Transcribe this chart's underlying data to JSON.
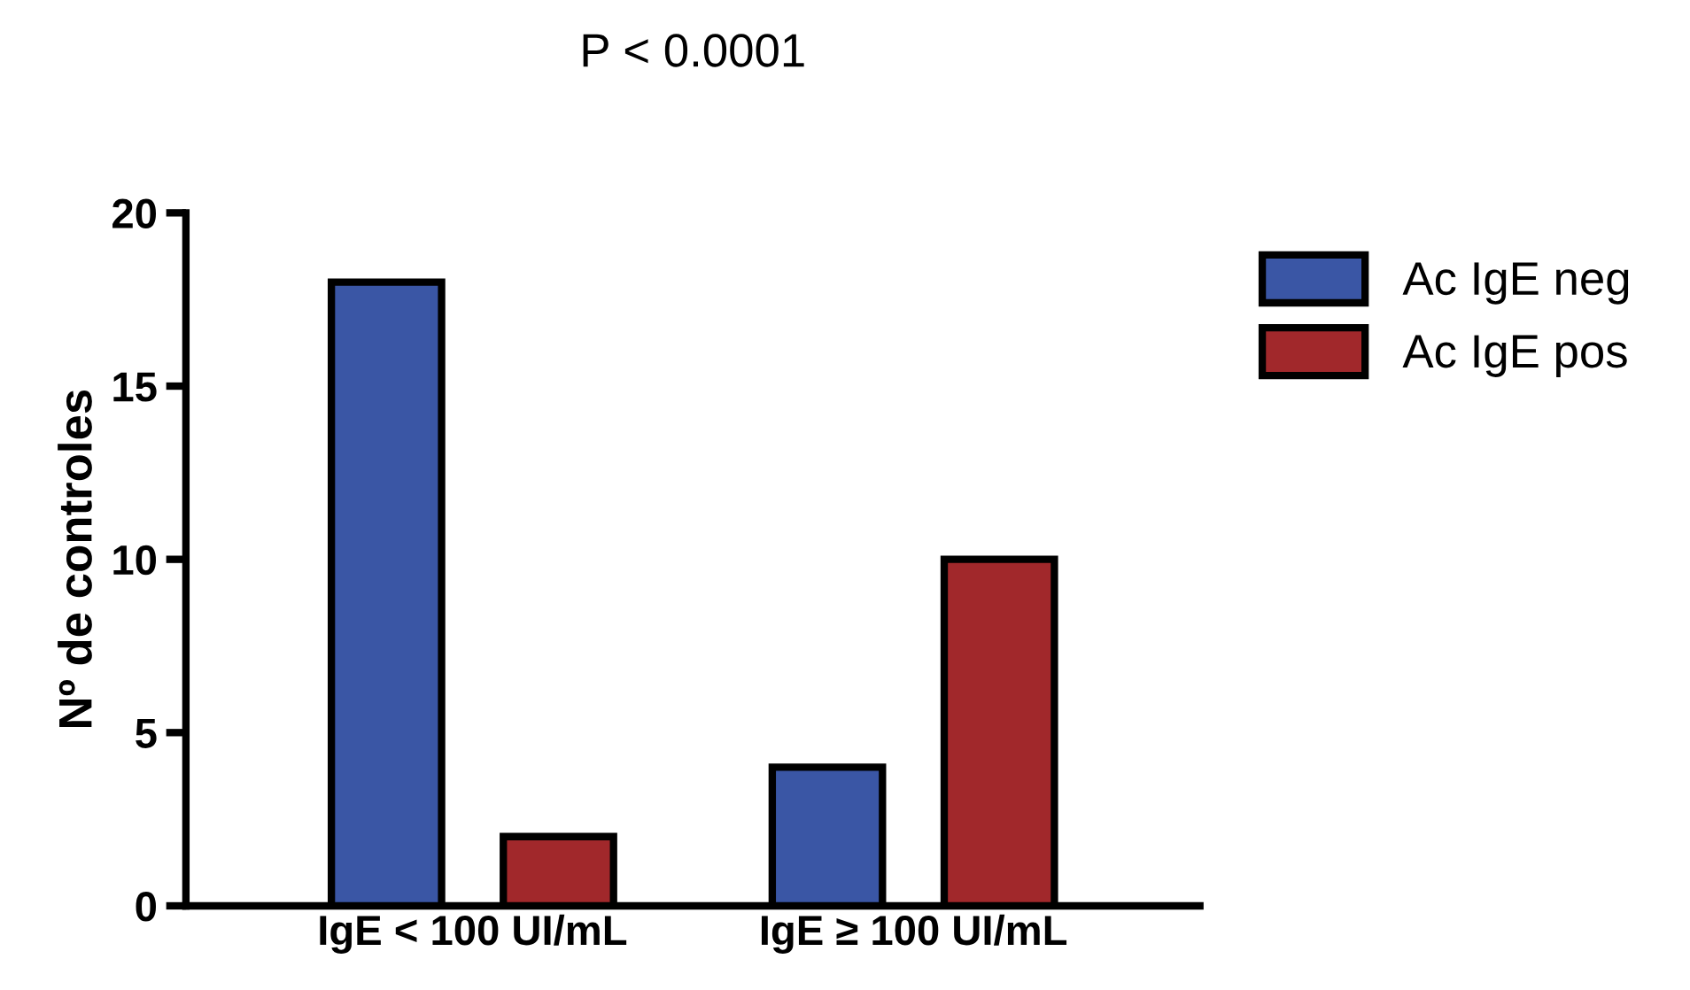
{
  "chart_data": {
    "type": "bar",
    "title": "P < 0.0001",
    "ylabel": "Nº de controles",
    "categories": [
      "IgE < 100 UI/mL",
      "IgE ≥ 100 UI/mL"
    ],
    "series": [
      {
        "name": "Ac IgE neg",
        "color": "#3a56a5",
        "values": [
          18,
          4
        ]
      },
      {
        "name": "Ac IgE pos",
        "color": "#a1282b",
        "values": [
          2,
          10
        ]
      }
    ],
    "ylim": [
      0,
      20
    ],
    "yticks": [
      0,
      5,
      10,
      15,
      20
    ],
    "grid": false,
    "legend": "right"
  }
}
